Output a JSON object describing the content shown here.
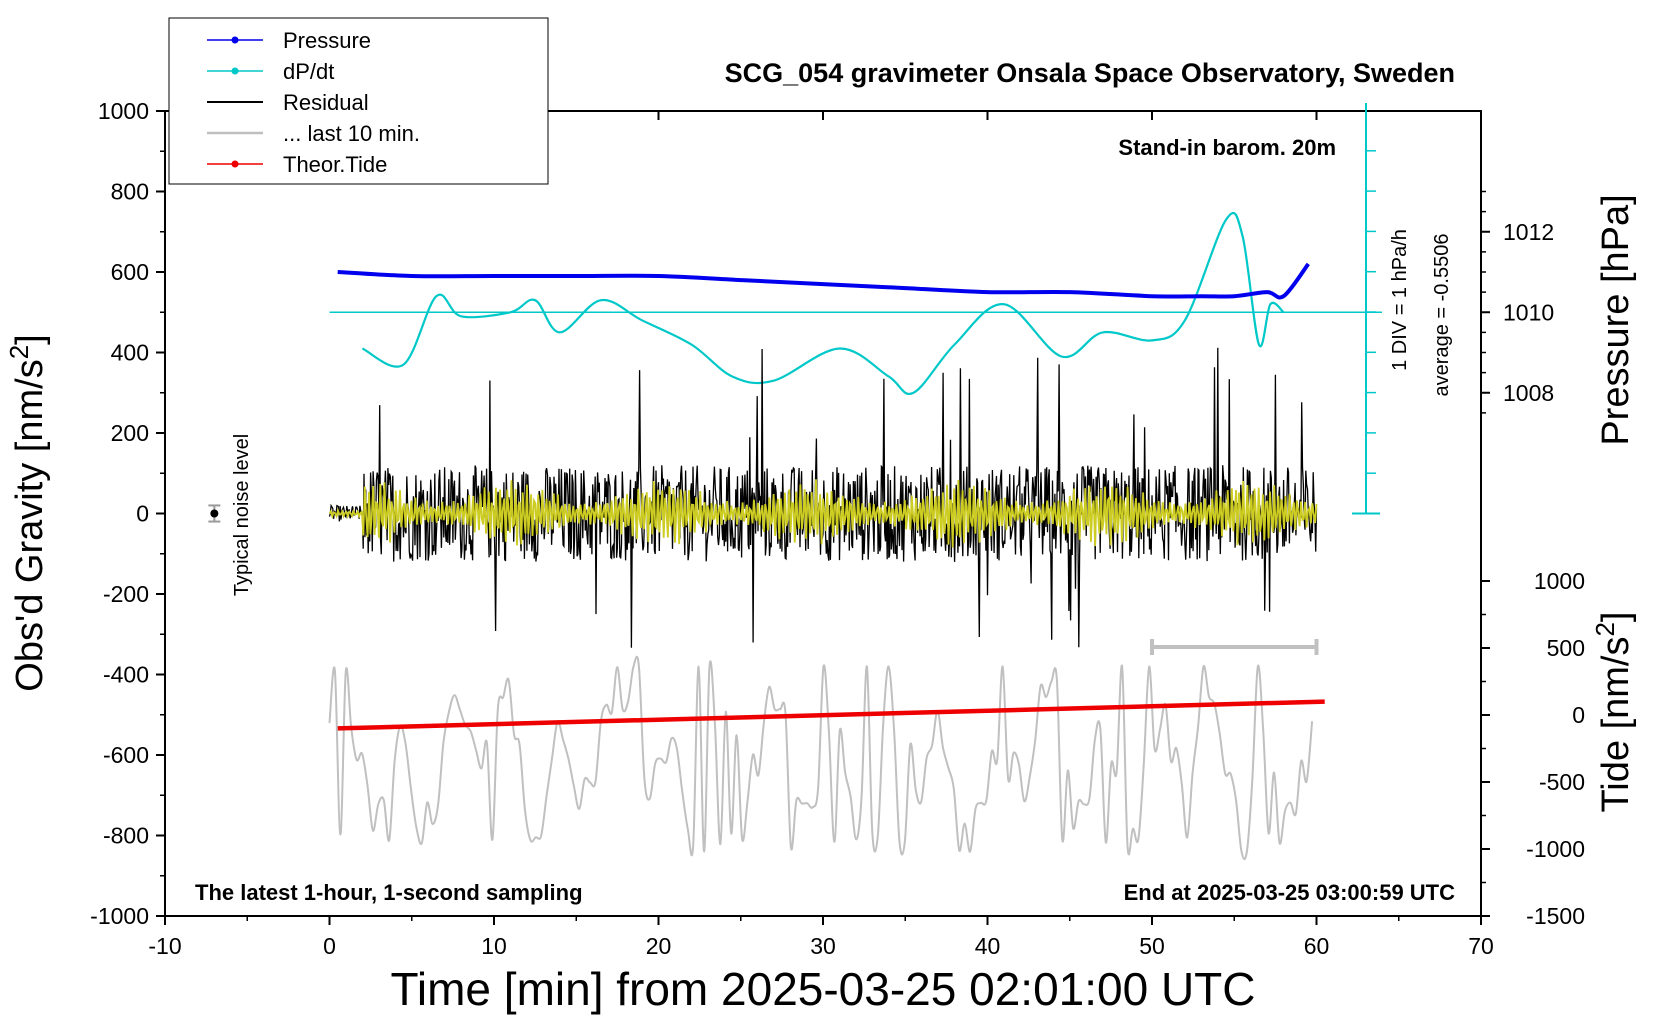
{
  "chart_data": {
    "type": "line",
    "title": "SCG_054 gravimeter Onsala Space Observatory, Sweden",
    "xlabel": "Time [min] from 2025-03-25 02:01:00 UTC",
    "xlim": [
      -10,
      70
    ],
    "xticks": [
      "-10",
      "0",
      "10",
      "20",
      "30",
      "40",
      "50",
      "60",
      "70"
    ],
    "left_axis": {
      "label": "Obs'd Gravity [nm/s",
      "label_sup": "2",
      "label_end": "]",
      "ylim": [
        -1000,
        1000
      ],
      "ticks": [
        "-1000",
        "-800",
        "-600",
        "-400",
        "-200",
        "0",
        "200",
        "400",
        "600",
        "800",
        "1000"
      ]
    },
    "right_pressure_axis": {
      "label": "Pressure [hPa]",
      "ticks": [
        "1008",
        "1010",
        "1012"
      ]
    },
    "right_tide_axis": {
      "label": "Tide [nm/s",
      "label_sup": "2",
      "label_end": "]",
      "ticks": [
        "-1500",
        "-1000",
        "-500",
        "0",
        "500",
        "1000"
      ]
    },
    "legend": [
      {
        "name": "Pressure",
        "color": "#0000ee",
        "marker": true
      },
      {
        "name": "dP/dt",
        "color": "#00c8c8",
        "marker": true
      },
      {
        "name": "Residual",
        "color": "#000000",
        "marker": false
      },
      {
        "name": "... last 10 min.",
        "color": "#c0c0c0",
        "marker": false
      },
      {
        "name": "Theor.Tide",
        "color": "#ee0000",
        "marker": true
      }
    ],
    "annotations": {
      "barometer": "Stand-in barom. 20m",
      "div_scale": "1 DIV = 1 hPa/h",
      "average": "average = -0.5506",
      "noise": "Typical noise level",
      "sampling": "The latest 1-hour, 1-second sampling",
      "end_time": "End at 2025-03-25 03:00:59 UTC"
    },
    "series": [
      {
        "name": "Pressure",
        "axis": "pressure_hPa",
        "x": [
          0.5,
          5,
          10,
          15,
          20,
          25,
          30,
          35,
          40,
          45,
          50,
          53,
          55,
          57,
          58,
          59.5
        ],
        "y": [
          1011.0,
          1010.9,
          1010.9,
          1010.9,
          1010.9,
          1010.8,
          1010.7,
          1010.6,
          1010.5,
          1010.5,
          1010.4,
          1010.4,
          1010.4,
          1010.5,
          1010.4,
          1011.2
        ]
      },
      {
        "name": "dP/dt",
        "axis": "dpdt_hPa_per_h",
        "x": [
          2,
          4.5,
          6.5,
          8,
          11,
          12.5,
          14,
          16.5,
          19,
          22,
          24.5,
          27,
          31,
          34,
          35.5,
          38,
          41,
          44.5,
          47,
          50,
          52,
          54.5,
          55.5,
          56.5,
          57.2,
          58
        ],
        "y": [
          4.1,
          3.7,
          5.4,
          4.9,
          5.0,
          5.3,
          4.5,
          5.3,
          4.8,
          4.2,
          3.4,
          3.3,
          4.1,
          3.4,
          3.0,
          4.2,
          5.2,
          3.9,
          4.5,
          4.3,
          4.8,
          7.3,
          6.9,
          4.2,
          5.2,
          5.0
        ]
      },
      {
        "name": "Theor.Tide",
        "axis": "tide_nm_s2",
        "x": [
          0.5,
          60.5
        ],
        "y": [
          -100,
          100
        ]
      },
      {
        "name": "Residual",
        "axis": "gravity_nm_s2",
        "x": [
          0,
          60
        ],
        "y_range": [
          -370,
          420
        ]
      },
      {
        "name": "... last 10 min.",
        "axis": "gravity_nm_s2",
        "x": [
          0,
          60
        ],
        "y_range": [
          -840,
          -380
        ]
      }
    ]
  }
}
